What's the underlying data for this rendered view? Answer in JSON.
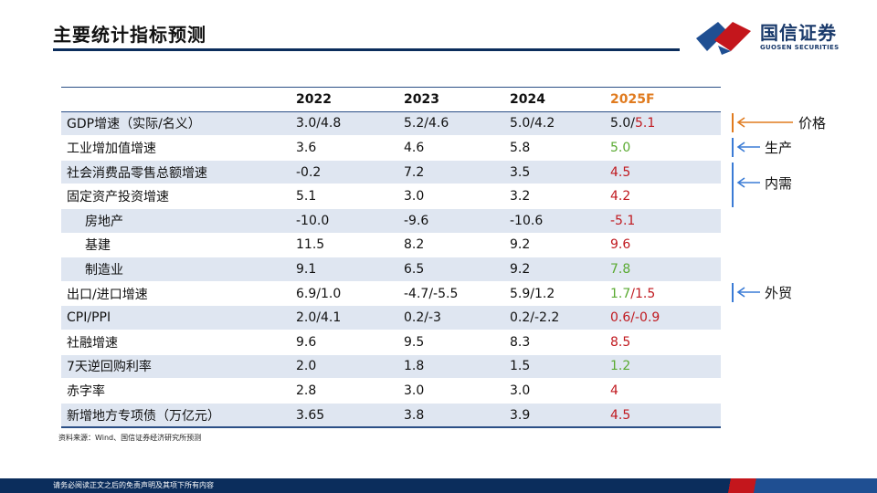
{
  "page": {
    "title": "主要统计指标预测",
    "source": "资料来源：Wind、国信证券经济研究所预测",
    "footer": "请务必阅读正文之后的免责声明及其项下所有内容"
  },
  "logo": {
    "name_cn": "国信证券",
    "name_en": "GUOSEN SECURITIES"
  },
  "table": {
    "headers": [
      "",
      "2022",
      "2023",
      "2024",
      "2025F"
    ],
    "rows": [
      {
        "label": "GDP增速（实际/名义）",
        "v2022": "3.0/4.8",
        "v2023": "5.2/4.6",
        "v2024": "5.0/4.2",
        "f_a": "5.0/",
        "f_b": "5.1"
      },
      {
        "label": "工业增加值增速",
        "v2022": "3.6",
        "v2023": "4.6",
        "v2024": "5.8",
        "f": "5.0"
      },
      {
        "label": "社会消费品零售总额增速",
        "v2022": "-0.2",
        "v2023": "7.2",
        "v2024": "3.5",
        "f": "4.5"
      },
      {
        "label": "固定资产投资增速",
        "v2022": "5.1",
        "v2023": "3.0",
        "v2024": "3.2",
        "f": "4.2"
      },
      {
        "label": "房地产",
        "v2022": "-10.0",
        "v2023": "-9.6",
        "v2024": "-10.6",
        "f": "-5.1"
      },
      {
        "label": "基建",
        "v2022": "11.5",
        "v2023": "8.2",
        "v2024": "9.2",
        "f": "9.6"
      },
      {
        "label": "制造业",
        "v2022": "9.1",
        "v2023": "6.5",
        "v2024": "9.2",
        "f": "7.8"
      },
      {
        "label": "出口/进口增速",
        "v2022": "6.9/1.0",
        "v2023": "-4.7/-5.5",
        "v2024": "5.9/1.2",
        "f_a": "1.7",
        "f_sep": "/",
        "f_b": "1.5"
      },
      {
        "label": "CPI/PPI",
        "v2022": "2.0/4.1",
        "v2023": "0.2/-3",
        "v2024": "0.2/-2.2",
        "f": "0.6/-0.9"
      },
      {
        "label": "社融增速",
        "v2022": "9.6",
        "v2023": "9.5",
        "v2024": "8.3",
        "f": "8.5"
      },
      {
        "label": "7天逆回购利率",
        "v2022": "2.0",
        "v2023": "1.8",
        "v2024": "1.5",
        "f": "1.2"
      },
      {
        "label": "赤字率",
        "v2022": "2.8",
        "v2023": "3.0",
        "v2024": "3.0",
        "f": "4"
      },
      {
        "label": "新增地方专项债（万亿元）",
        "v2022": "3.65",
        "v2023": "3.8",
        "v2024": "3.9",
        "f": "4.5"
      }
    ]
  },
  "annotations": {
    "price": "价格",
    "production": "生产",
    "demand": "内需",
    "trade": "外贸"
  },
  "colors": {
    "navy": "#0b2d5c",
    "stripe": "#dfe6f1",
    "forecast_header": "#e07b1f",
    "up_red": "#c0191f",
    "down_green": "#5aaa32",
    "price_arrow": "#e07b1f",
    "arrow_blue": "#3a7bd5"
  }
}
